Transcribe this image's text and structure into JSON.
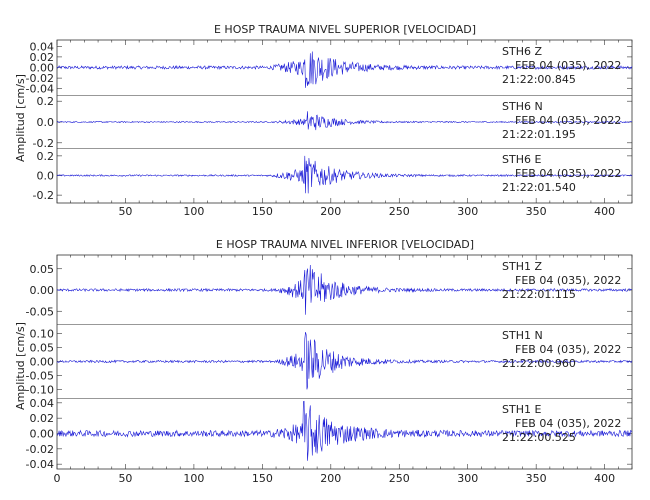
{
  "colors": {
    "trace": "#1a1ad6",
    "axis": "#333333",
    "text": "#222222"
  },
  "chart_data": [
    {
      "type": "line",
      "title": "E HOSP TRAUMA NIVEL SUPERIOR [VELOCIDAD]",
      "ylabel": "Amplitud [cm/s]",
      "xlim": [
        0,
        420
      ],
      "x_ticks": [
        "50",
        "100",
        "150",
        "200",
        "250",
        "300",
        "350",
        "400"
      ],
      "grid": false,
      "panels": [
        {
          "station": "STH6",
          "component": "Z",
          "date": "FEB 04 (035), 2022",
          "time": "21:22:00.845",
          "ylim": [
            -0.05,
            0.05
          ],
          "y_ticks": [
            {
              "v": 0.04,
              "t": "0.04"
            },
            {
              "v": 0.02,
              "t": "0.02"
            },
            {
              "v": 0.0,
              "t": "0.00"
            },
            {
              "v": -0.02,
              "t": "-0.02"
            },
            {
              "v": -0.04,
              "t": "-0.04"
            }
          ],
          "noise": 0.003,
          "onset": 155,
          "peak_time": 180,
          "peak": 0.046,
          "decay": 20
        },
        {
          "station": "STH6",
          "component": "N",
          "date": "FEB 04 (035), 2022",
          "time": "21:22:01.195",
          "ylim": [
            -0.25,
            0.25
          ],
          "y_ticks": [
            {
              "v": 0.2,
              "t": "0.2"
            },
            {
              "v": 0.0,
              "t": "0.0"
            },
            {
              "v": -0.2,
              "t": "-0.2"
            }
          ],
          "noise": 0.006,
          "onset": 158,
          "peak_time": 183,
          "peak": 0.11,
          "decay": 17
        },
        {
          "station": "STH6",
          "component": "E",
          "date": "FEB 04 (035), 2022",
          "time": "21:22:01.540",
          "ylim": [
            -0.27,
            0.27
          ],
          "y_ticks": [
            {
              "v": 0.2,
              "t": "0.2"
            },
            {
              "v": 0.0,
              "t": "0.0"
            },
            {
              "v": -0.2,
              "t": "-0.2"
            }
          ],
          "noise": 0.008,
          "onset": 155,
          "peak_time": 180,
          "peak": 0.22,
          "decay": 20
        }
      ]
    },
    {
      "type": "line",
      "title": "E HOSP TRAUMA NIVEL INFERIOR [VELOCIDAD]",
      "ylabel": "Amplitud [cm/s]",
      "xlim": [
        0,
        420
      ],
      "x_ticks": [
        "0",
        "50",
        "100",
        "150",
        "200",
        "250",
        "300",
        "350",
        "400"
      ],
      "grid": false,
      "panels": [
        {
          "station": "STH1",
          "component": "Z",
          "date": "FEB 04 (035), 2022",
          "time": "21:22:01.115",
          "ylim": [
            -0.08,
            0.08
          ],
          "y_ticks": [
            {
              "v": 0.05,
              "t": "0.05"
            },
            {
              "v": 0.0,
              "t": "0.00"
            },
            {
              "v": -0.05,
              "t": "-0.05"
            }
          ],
          "noise": 0.003,
          "onset": 160,
          "peak_time": 180,
          "peak": 0.075,
          "decay": 18
        },
        {
          "station": "STH1",
          "component": "N",
          "date": "FEB 04 (035), 2022",
          "time": "21:22:00.960",
          "ylim": [
            -0.13,
            0.13
          ],
          "y_ticks": [
            {
              "v": 0.1,
              "t": "0.10"
            },
            {
              "v": 0.05,
              "t": "0.05"
            },
            {
              "v": 0.0,
              "t": "0.00"
            },
            {
              "v": -0.05,
              "t": "-0.05"
            },
            {
              "v": -0.1,
              "t": "-0.10"
            }
          ],
          "noise": 0.004,
          "onset": 160,
          "peak_time": 181,
          "peak": 0.115,
          "decay": 18
        },
        {
          "station": "STH1",
          "component": "E",
          "date": "FEB 04 (035), 2022",
          "time": "21:22:00.525",
          "ylim": [
            -0.045,
            0.045
          ],
          "y_ticks": [
            {
              "v": 0.04,
              "t": "0.04"
            },
            {
              "v": 0.02,
              "t": "0.02"
            },
            {
              "v": 0.0,
              "t": "0.00"
            },
            {
              "v": -0.02,
              "t": "-0.02"
            },
            {
              "v": -0.04,
              "t": "-0.04"
            }
          ],
          "noise": 0.004,
          "onset": 155,
          "peak_time": 180,
          "peak": 0.043,
          "decay": 20
        }
      ]
    }
  ]
}
